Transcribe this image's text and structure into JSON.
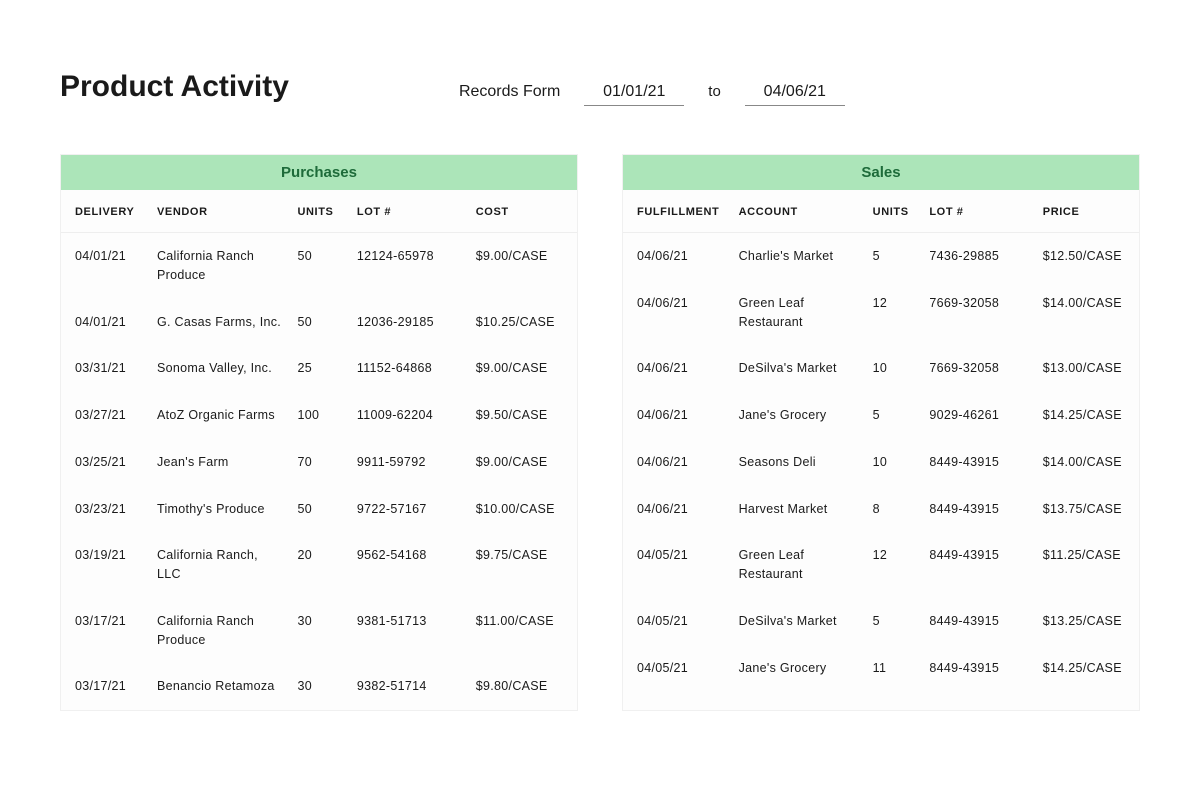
{
  "header": {
    "title": "Product Activity",
    "filter_label": "Records Form",
    "date_from": "01/01/21",
    "date_to_label": "to",
    "date_to": "04/06/21"
  },
  "colors": {
    "table_header_bg": "#ace5b9",
    "table_header_text": "#1e6b3a",
    "panel_bg": "#fdfdfd",
    "panel_border": "#f0f0f0",
    "row_divider": "#eeeeee",
    "text": "#1a1a1a"
  },
  "purchases": {
    "title": "Purchases",
    "columns": [
      "DELIVERY",
      "VENDOR",
      "UNITS",
      "LOT #",
      "COST"
    ],
    "rows": [
      {
        "date": "04/01/21",
        "party": "California Ranch Produce",
        "units": "50",
        "lot": "12124-65978",
        "price": "$9.00/CASE"
      },
      {
        "date": "04/01/21",
        "party": "G. Casas Farms, Inc.",
        "units": "50",
        "lot": "12036-29185",
        "price": "$10.25/CASE"
      },
      {
        "date": "03/31/21",
        "party": "Sonoma Valley, Inc.",
        "units": "25",
        "lot": "11152-64868",
        "price": "$9.00/CASE"
      },
      {
        "date": "03/27/21",
        "party": "AtoZ Organic Farms",
        "units": "100",
        "lot": "11009-62204",
        "price": "$9.50/CASE"
      },
      {
        "date": "03/25/21",
        "party": "Jean's Farm",
        "units": "70",
        "lot": "9911-59792",
        "price": "$9.00/CASE"
      },
      {
        "date": "03/23/21",
        "party": "Timothy's Produce",
        "units": "50",
        "lot": "9722-57167",
        "price": "$10.00/CASE"
      },
      {
        "date": "03/19/21",
        "party": "California Ranch, LLC",
        "units": "20",
        "lot": "9562-54168",
        "price": "$9.75/CASE"
      },
      {
        "date": "03/17/21",
        "party": "California Ranch Produce",
        "units": "30",
        "lot": "9381-51713",
        "price": "$11.00/CASE"
      },
      {
        "date": "03/17/21",
        "party": "Benancio Retamoza",
        "units": "30",
        "lot": "9382-51714",
        "price": "$9.80/CASE"
      }
    ]
  },
  "sales": {
    "title": "Sales",
    "columns": [
      "FULFILLMENT",
      "ACCOUNT",
      "UNITS",
      "LOT #",
      "PRICE"
    ],
    "rows": [
      {
        "date": "04/06/21",
        "party": "Charlie's Market",
        "units": "5",
        "lot": "7436-29885",
        "price": "$12.50/CASE"
      },
      {
        "date": "04/06/21",
        "party": "Green Leaf Restaurant",
        "units": "12",
        "lot": "7669-32058",
        "price": "$14.00/CASE"
      },
      {
        "date": "04/06/21",
        "party": "DeSilva's Market",
        "units": "10",
        "lot": "7669-32058",
        "price": "$13.00/CASE"
      },
      {
        "date": "04/06/21",
        "party": "Jane's Grocery",
        "units": "5",
        "lot": "9029-46261",
        "price": "$14.25/CASE"
      },
      {
        "date": "04/06/21",
        "party": "Seasons Deli",
        "units": "10",
        "lot": "8449-43915",
        "price": "$14.00/CASE"
      },
      {
        "date": "04/06/21",
        "party": "Harvest Market",
        "units": "8",
        "lot": "8449-43915",
        "price": "$13.75/CASE"
      },
      {
        "date": "04/05/21",
        "party": "Green Leaf Restaurant",
        "units": "12",
        "lot": "8449-43915",
        "price": "$11.25/CASE"
      },
      {
        "date": "04/05/21",
        "party": "DeSilva's Market",
        "units": "5",
        "lot": "8449-43915",
        "price": "$13.25/CASE"
      },
      {
        "date": "04/05/21",
        "party": "Jane's Grocery",
        "units": "11",
        "lot": "8449-43915",
        "price": "$14.25/CASE"
      }
    ]
  }
}
